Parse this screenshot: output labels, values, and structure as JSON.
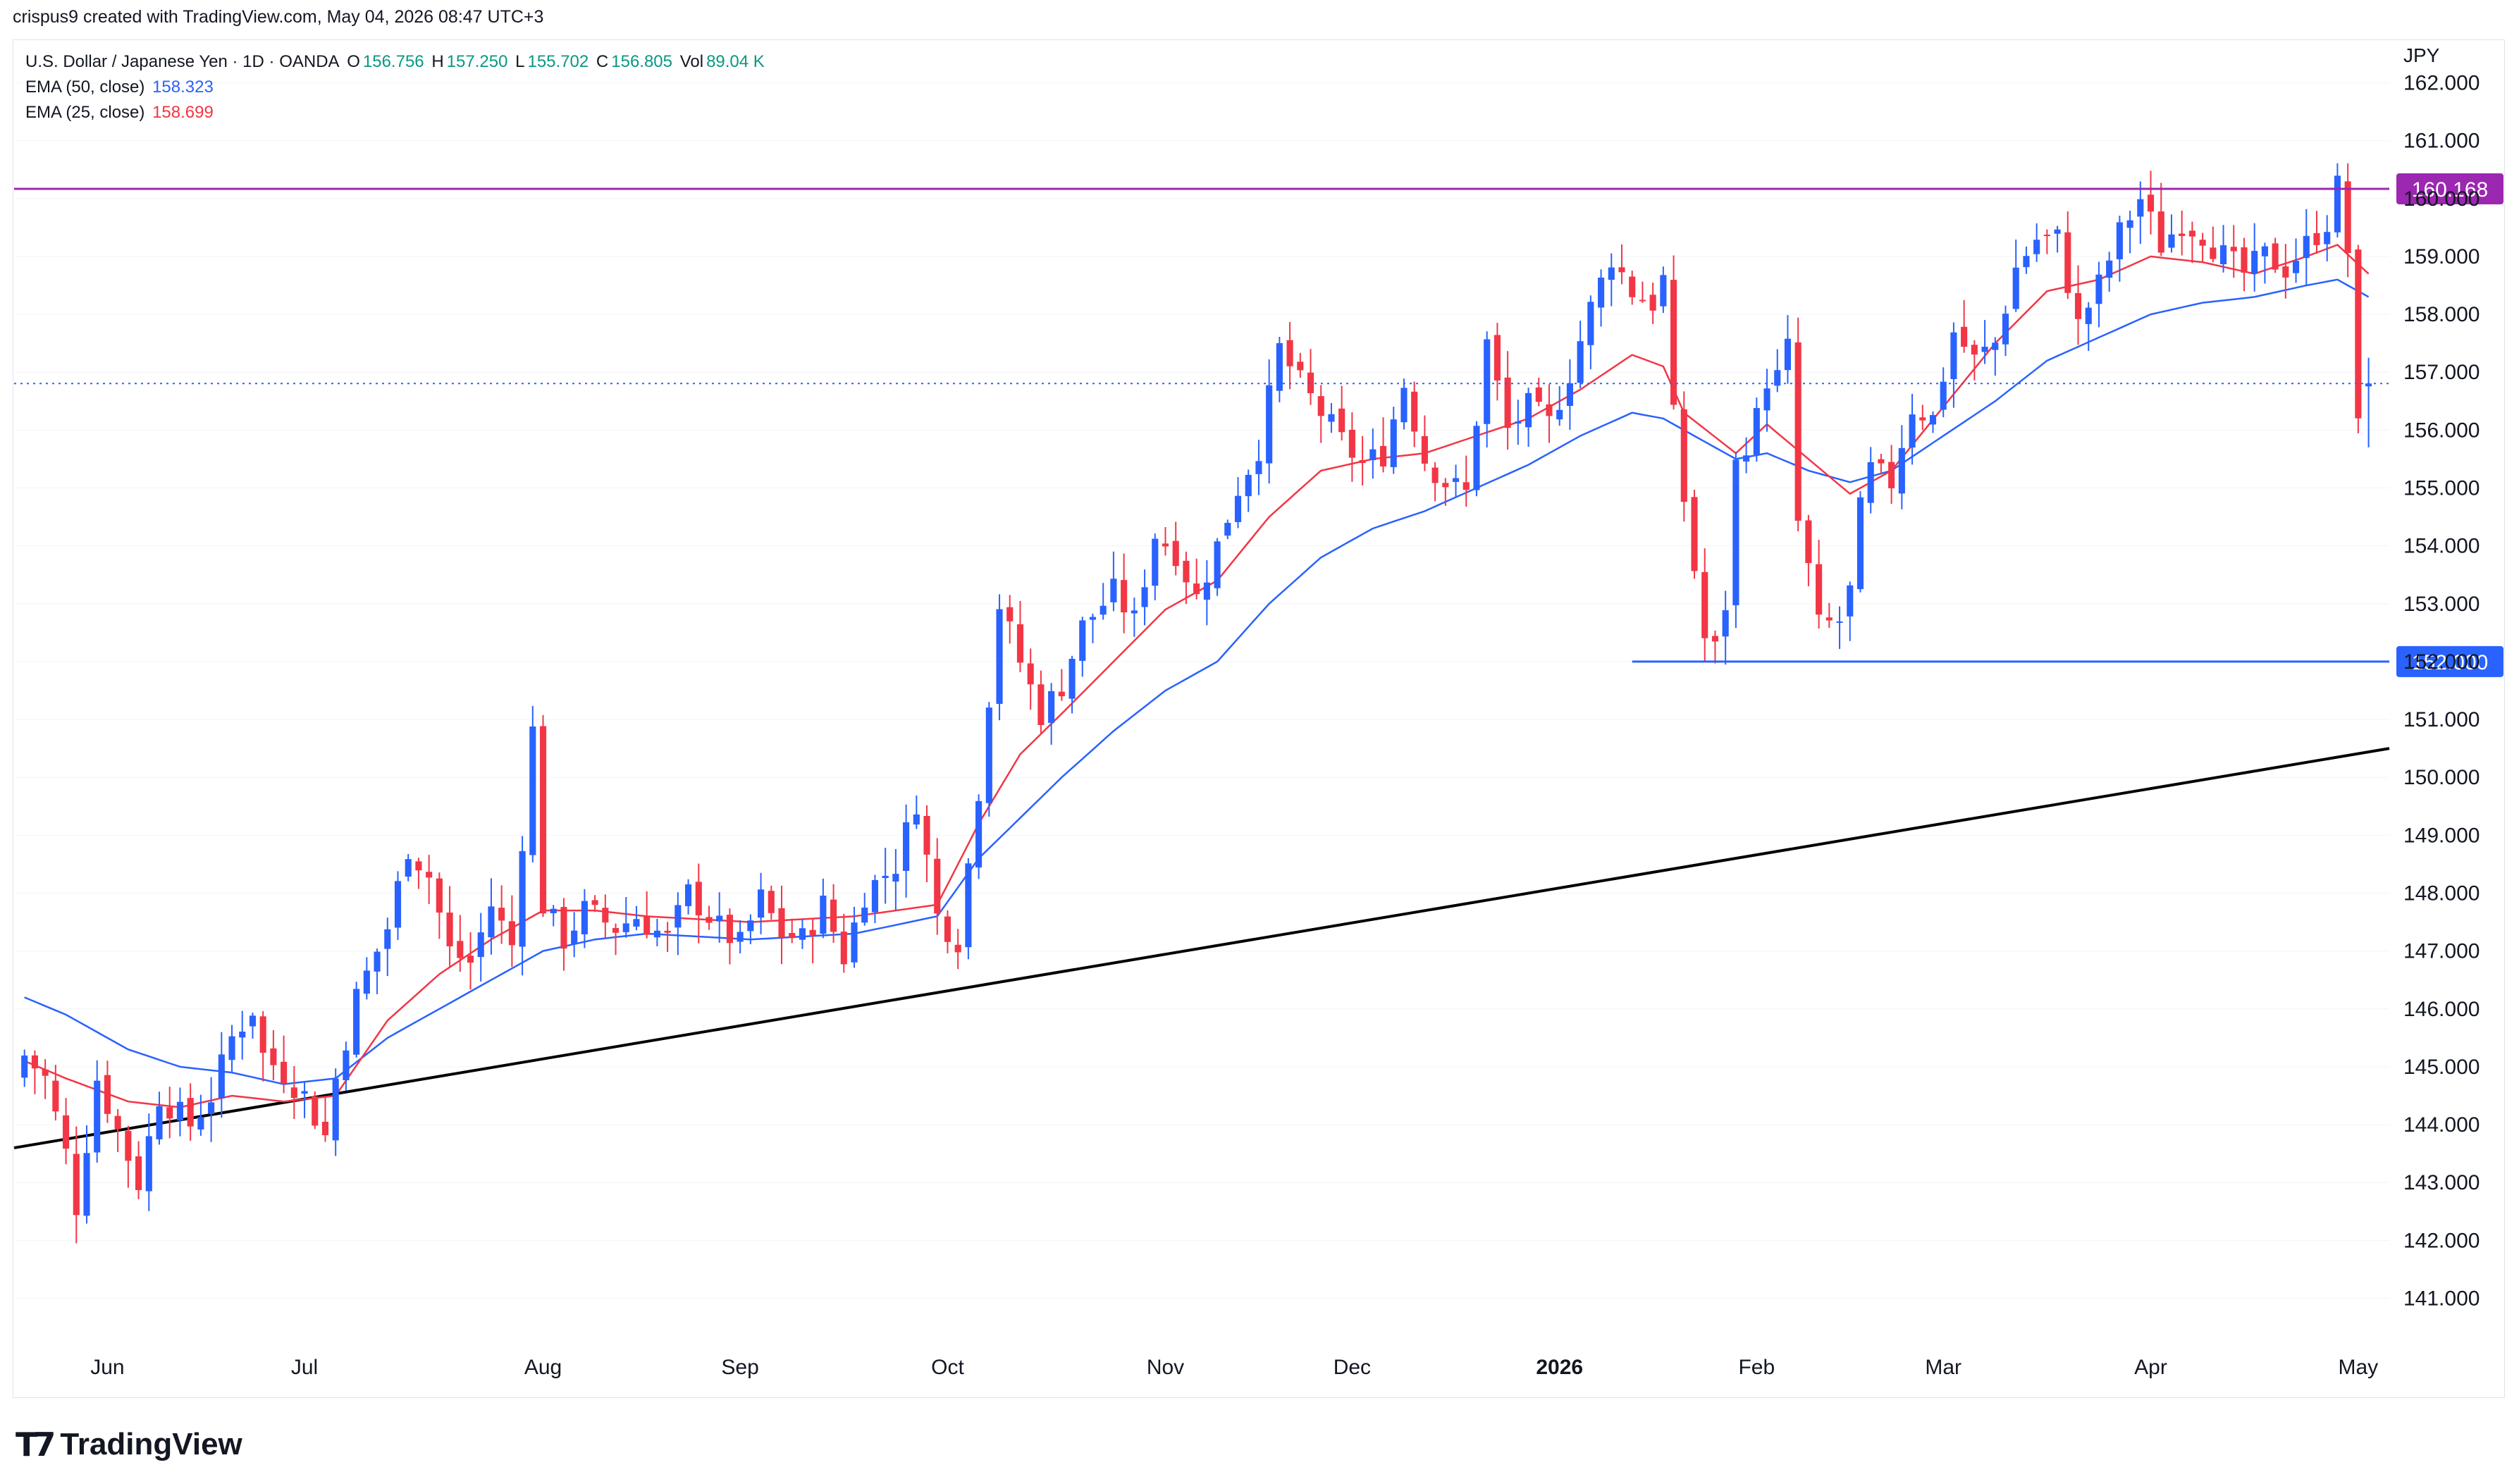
{
  "header": {
    "text": "crispus9 created with TradingView.com, May 04, 2026 08:47 UTC+3"
  },
  "legend": {
    "symbol": "U.S. Dollar / Japanese Yen · 1D · OANDA",
    "o_label": "O",
    "o": "156.756",
    "h_label": "H",
    "h": "157.250",
    "l_label": "L",
    "l": "155.702",
    "c_label": "C",
    "c": "156.805",
    "vol_label": "Vol",
    "vol": "89.04 K",
    "ema50_label": "EMA (50, close)",
    "ema50": "158.323",
    "ema25_label": "EMA (25, close)",
    "ema25": "158.699"
  },
  "currency": "JPY",
  "colors": {
    "up": "#2962ff",
    "down": "#f23645",
    "ema50": "#2962ff",
    "ema25": "#f23645",
    "resistance": "#9c27b0",
    "support": "#2962ff",
    "trend": "#000000",
    "last_price_line": "#2962ff"
  },
  "footer": {
    "brand": "TradingView",
    "brand_icon": "tradingview-logo-icon"
  },
  "chart_data": {
    "type": "candlestick",
    "symbol": "USD/JPY",
    "interval": "1D",
    "y_ticks": [
      141,
      142,
      143,
      144,
      145,
      146,
      147,
      148,
      149,
      150,
      151,
      152,
      153,
      154,
      155,
      156,
      157,
      158,
      159,
      160,
      161,
      162
    ],
    "ylim": [
      140.3,
      162.7
    ],
    "x_labels": [
      {
        "label": "Jun",
        "i": 8,
        "bold": false
      },
      {
        "label": "Jul",
        "i": 27,
        "bold": false
      },
      {
        "label": "Aug",
        "i": 50,
        "bold": false
      },
      {
        "label": "Sep",
        "i": 69,
        "bold": false
      },
      {
        "label": "Oct",
        "i": 89,
        "bold": false
      },
      {
        "label": "Nov",
        "i": 110,
        "bold": false
      },
      {
        "label": "Dec",
        "i": 128,
        "bold": false
      },
      {
        "label": "2026",
        "i": 148,
        "bold": true
      },
      {
        "label": "Feb",
        "i": 167,
        "bold": false
      },
      {
        "label": "Mar",
        "i": 185,
        "bold": false
      },
      {
        "label": "Apr",
        "i": 205,
        "bold": false
      },
      {
        "label": "May",
        "i": 225,
        "bold": false
      }
    ],
    "anchors": [
      [
        0,
        145.2
      ],
      [
        2,
        144.8
      ],
      [
        4,
        143.5
      ],
      [
        5,
        142.6
      ],
      [
        7,
        144.8
      ],
      [
        9,
        143.9
      ],
      [
        11,
        143.0
      ],
      [
        13,
        144.5
      ],
      [
        16,
        144.0
      ],
      [
        18,
        144.5
      ],
      [
        20,
        145.5
      ],
      [
        22,
        146.0
      ],
      [
        23,
        145.2
      ],
      [
        25,
        144.9
      ],
      [
        27,
        144.5
      ],
      [
        29,
        143.8
      ],
      [
        30,
        144.8
      ],
      [
        32,
        146.2
      ],
      [
        35,
        147.4
      ],
      [
        37,
        148.8
      ],
      [
        39,
        148.3
      ],
      [
        41,
        147.0
      ],
      [
        43,
        146.8
      ],
      [
        45,
        147.8
      ],
      [
        47,
        147.1
      ],
      [
        49,
        150.8
      ],
      [
        50,
        147.8
      ],
      [
        52,
        147.2
      ],
      [
        54,
        147.7
      ],
      [
        57,
        147.4
      ],
      [
        59,
        147.6
      ],
      [
        62,
        147.2
      ],
      [
        64,
        148.0
      ],
      [
        67,
        147.4
      ],
      [
        69,
        147.1
      ],
      [
        71,
        147.9
      ],
      [
        73,
        147.3
      ],
      [
        75,
        147.2
      ],
      [
        77,
        147.8
      ],
      [
        79,
        146.9
      ],
      [
        81,
        148.0
      ],
      [
        84,
        148.5
      ],
      [
        86,
        149.6
      ],
      [
        88,
        147.6
      ],
      [
        90,
        147.2
      ],
      [
        92,
        149.8
      ],
      [
        94,
        153.0
      ],
      [
        96,
        152.0
      ],
      [
        98,
        151.1
      ],
      [
        100,
        151.6
      ],
      [
        102,
        152.6
      ],
      [
        105,
        153.2
      ],
      [
        107,
        152.7
      ],
      [
        109,
        154.2
      ],
      [
        111,
        153.9
      ],
      [
        113,
        153.1
      ],
      [
        115,
        154.0
      ],
      [
        117,
        155.0
      ],
      [
        119,
        155.7
      ],
      [
        121,
        157.4
      ],
      [
        123,
        156.8
      ],
      [
        125,
        156.3
      ],
      [
        127,
        155.8
      ],
      [
        129,
        155.4
      ],
      [
        131,
        155.6
      ],
      [
        133,
        156.8
      ],
      [
        135,
        155.5
      ],
      [
        137,
        155.1
      ],
      [
        139,
        154.9
      ],
      [
        141,
        157.5
      ],
      [
        143,
        156.0
      ],
      [
        145,
        156.4
      ],
      [
        147,
        156.1
      ],
      [
        149,
        157.0
      ],
      [
        151,
        158.1
      ],
      [
        153,
        159.0
      ],
      [
        155,
        158.4
      ],
      [
        157,
        158.2
      ],
      [
        158,
        158.6
      ],
      [
        159,
        156.2
      ],
      [
        160,
        154.8
      ],
      [
        161,
        153.6
      ],
      [
        162,
        152.4
      ],
      [
        163,
        152.2
      ],
      [
        164,
        153.0
      ],
      [
        165,
        155.4
      ],
      [
        167,
        156.2
      ],
      [
        168,
        156.9
      ],
      [
        169,
        156.9
      ],
      [
        170,
        157.4
      ],
      [
        171,
        154.4
      ],
      [
        172,
        153.6
      ],
      [
        173,
        152.6
      ],
      [
        175,
        152.7
      ],
      [
        176,
        153.2
      ],
      [
        177,
        154.6
      ],
      [
        178,
        155.3
      ],
      [
        180,
        155.1
      ],
      [
        181,
        155.8
      ],
      [
        182,
        156.4
      ],
      [
        184,
        156.2
      ],
      [
        186,
        157.7
      ],
      [
        188,
        157.2
      ],
      [
        190,
        157.5
      ],
      [
        192,
        158.8
      ],
      [
        194,
        159.3
      ],
      [
        196,
        159.3
      ],
      [
        198,
        157.8
      ],
      [
        200,
        158.5
      ],
      [
        202,
        159.4
      ],
      [
        204,
        160.0
      ],
      [
        206,
        159.2
      ],
      [
        208,
        159.6
      ],
      [
        210,
        159.4
      ],
      [
        212,
        159.0
      ],
      [
        214,
        158.7
      ],
      [
        216,
        159.0
      ],
      [
        218,
        158.8
      ],
      [
        220,
        159.2
      ],
      [
        222,
        159.6
      ],
      [
        223,
        160.2
      ],
      [
        224,
        159.1
      ],
      [
        225,
        156.0
      ],
      [
        226,
        156.8
      ]
    ],
    "ema50_values": [
      [
        0,
        146.2
      ],
      [
        4,
        145.9
      ],
      [
        10,
        145.3
      ],
      [
        15,
        145.0
      ],
      [
        20,
        144.9
      ],
      [
        25,
        144.7
      ],
      [
        30,
        144.8
      ],
      [
        35,
        145.5
      ],
      [
        40,
        146.0
      ],
      [
        45,
        146.5
      ],
      [
        50,
        147.0
      ],
      [
        55,
        147.2
      ],
      [
        60,
        147.3
      ],
      [
        70,
        147.2
      ],
      [
        80,
        147.3
      ],
      [
        88,
        147.6
      ],
      [
        92,
        148.6
      ],
      [
        96,
        149.3
      ],
      [
        100,
        150.0
      ],
      [
        105,
        150.8
      ],
      [
        110,
        151.5
      ],
      [
        115,
        152.0
      ],
      [
        120,
        153.0
      ],
      [
        125,
        153.8
      ],
      [
        130,
        154.3
      ],
      [
        135,
        154.6
      ],
      [
        140,
        155.0
      ],
      [
        145,
        155.4
      ],
      [
        150,
        155.9
      ],
      [
        155,
        156.3
      ],
      [
        158,
        156.2
      ],
      [
        160,
        156.0
      ],
      [
        165,
        155.5
      ],
      [
        168,
        155.6
      ],
      [
        172,
        155.3
      ],
      [
        176,
        155.1
      ],
      [
        180,
        155.3
      ],
      [
        185,
        155.9
      ],
      [
        190,
        156.5
      ],
      [
        195,
        157.2
      ],
      [
        200,
        157.6
      ],
      [
        205,
        158.0
      ],
      [
        210,
        158.2
      ],
      [
        215,
        158.3
      ],
      [
        220,
        158.5
      ],
      [
        223,
        158.6
      ],
      [
        226,
        158.3
      ]
    ],
    "ema25_values": [
      [
        0,
        145.1
      ],
      [
        4,
        144.8
      ],
      [
        10,
        144.4
      ],
      [
        15,
        144.3
      ],
      [
        20,
        144.5
      ],
      [
        25,
        144.4
      ],
      [
        30,
        144.5
      ],
      [
        35,
        145.8
      ],
      [
        40,
        146.6
      ],
      [
        45,
        147.2
      ],
      [
        50,
        147.7
      ],
      [
        55,
        147.7
      ],
      [
        60,
        147.6
      ],
      [
        70,
        147.5
      ],
      [
        80,
        147.6
      ],
      [
        88,
        147.8
      ],
      [
        92,
        149.2
      ],
      [
        96,
        150.4
      ],
      [
        100,
        151.1
      ],
      [
        105,
        152.0
      ],
      [
        110,
        152.9
      ],
      [
        115,
        153.4
      ],
      [
        120,
        154.5
      ],
      [
        125,
        155.3
      ],
      [
        130,
        155.5
      ],
      [
        135,
        155.6
      ],
      [
        140,
        155.9
      ],
      [
        145,
        156.2
      ],
      [
        150,
        156.7
      ],
      [
        155,
        157.3
      ],
      [
        158,
        157.1
      ],
      [
        160,
        156.3
      ],
      [
        165,
        155.6
      ],
      [
        168,
        156.1
      ],
      [
        172,
        155.5
      ],
      [
        176,
        154.9
      ],
      [
        180,
        155.3
      ],
      [
        185,
        156.4
      ],
      [
        190,
        157.5
      ],
      [
        195,
        158.4
      ],
      [
        200,
        158.6
      ],
      [
        205,
        159.0
      ],
      [
        210,
        158.9
      ],
      [
        215,
        158.7
      ],
      [
        220,
        159.0
      ],
      [
        223,
        159.2
      ],
      [
        226,
        158.7
      ]
    ],
    "last_bar": {
      "open": 156.756,
      "high": 157.25,
      "low": 155.702,
      "close": 156.805
    },
    "horizontal_lines": [
      {
        "name": "resistance",
        "value": 160.168,
        "label": "160.168",
        "from_i": -1
      },
      {
        "name": "support",
        "value": 152.0,
        "label": "152.000",
        "from_i": 155
      },
      {
        "name": "last-price",
        "value": 156.805,
        "label": "",
        "from_i": -1
      }
    ],
    "trendline": {
      "from": [
        -1,
        143.6
      ],
      "to": [
        228,
        150.5
      ]
    },
    "bar_count": 227
  }
}
